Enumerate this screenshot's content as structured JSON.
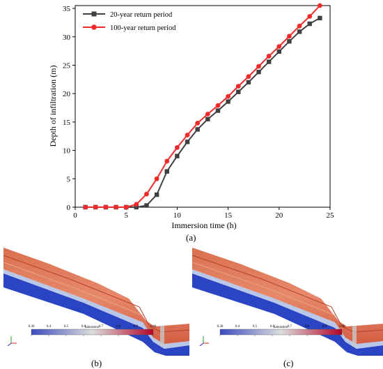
{
  "chart_data": [
    {
      "type": "line",
      "panel_label": "(a)",
      "xlabel": "Immersion time   (h)",
      "ylabel": "Depth of infiltration   (m)",
      "xlim": [
        0,
        25
      ],
      "ylim": [
        0,
        35.5
      ],
      "xticks": [
        0,
        5,
        10,
        15,
        20,
        25
      ],
      "yticks": [
        0,
        5,
        10,
        15,
        20,
        25,
        30,
        35
      ],
      "legend_position": "top-left",
      "series": [
        {
          "name": "20-year return period",
          "color": "#404040",
          "marker": "square",
          "x": [
            1,
            2,
            3,
            4,
            5,
            6,
            7,
            8,
            9,
            10,
            11,
            12,
            13,
            14,
            15,
            16,
            17,
            18,
            19,
            20,
            21,
            22,
            23,
            24
          ],
          "y": [
            0,
            0,
            0,
            0,
            0,
            0,
            0.3,
            2.2,
            6.3,
            9.0,
            11.5,
            13.7,
            15.5,
            17.0,
            18.6,
            20.3,
            22.0,
            23.8,
            25.6,
            27.4,
            29.2,
            30.9,
            32.3,
            33.3
          ]
        },
        {
          "name": "100-year return period",
          "color": "#ee2a2a",
          "marker": "circle",
          "x": [
            1,
            2,
            3,
            4,
            5,
            6,
            7,
            8,
            9,
            10,
            11,
            12,
            13,
            14,
            15,
            16,
            17,
            18,
            19,
            20,
            21,
            22,
            23,
            24
          ],
          "y": [
            0,
            0,
            0,
            0,
            0,
            0.5,
            2.3,
            5.0,
            8.1,
            10.5,
            12.7,
            14.8,
            16.4,
            17.9,
            19.5,
            21.3,
            23.0,
            24.8,
            26.6,
            28.3,
            30.1,
            31.9,
            33.6,
            35.5
          ]
        }
      ]
    }
  ],
  "panels": {
    "b": {
      "label": "(b)",
      "colorbar_title": "Saturation",
      "colorbar_ticks": [
        "0.30",
        "0.4",
        "0.5",
        "0.6",
        "0.7",
        "0.8",
        "0.9",
        "1.00"
      ]
    },
    "c": {
      "label": "(c)",
      "colorbar_title": "Saturation",
      "colorbar_ticks": [
        "0.30",
        "0.4",
        "0.5",
        "0.6",
        "0.7",
        "0.8",
        "0.9",
        "1.00"
      ]
    }
  },
  "colors": {
    "scale_low": "#3b4cc0",
    "scale_mid": "#dddddd",
    "scale_high": "#b40426"
  }
}
